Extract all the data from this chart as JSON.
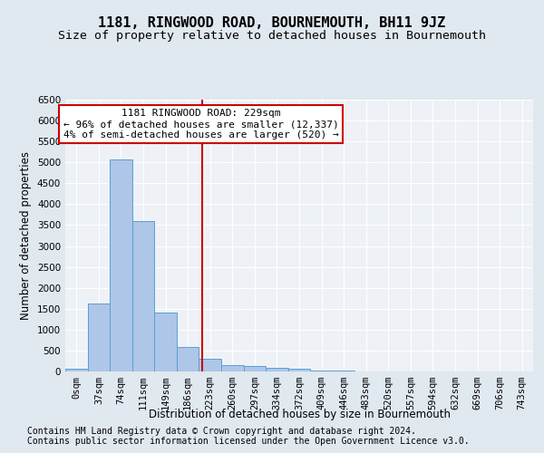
{
  "title": "1181, RINGWOOD ROAD, BOURNEMOUTH, BH11 9JZ",
  "subtitle": "Size of property relative to detached houses in Bournemouth",
  "xlabel": "Distribution of detached houses by size in Bournemouth",
  "ylabel": "Number of detached properties",
  "footer1": "Contains HM Land Registry data © Crown copyright and database right 2024.",
  "footer2": "Contains public sector information licensed under the Open Government Licence v3.0.",
  "bin_labels": [
    "0sqm",
    "37sqm",
    "74sqm",
    "111sqm",
    "149sqm",
    "186sqm",
    "223sqm",
    "260sqm",
    "297sqm",
    "334sqm",
    "372sqm",
    "409sqm",
    "446sqm",
    "483sqm",
    "520sqm",
    "557sqm",
    "594sqm",
    "632sqm",
    "669sqm",
    "706sqm",
    "743sqm"
  ],
  "bar_values": [
    60,
    1630,
    5080,
    3600,
    1410,
    590,
    300,
    150,
    130,
    95,
    55,
    30,
    20,
    10,
    5,
    3,
    2,
    1,
    1,
    0,
    0
  ],
  "bar_color": "#aec6e8",
  "bar_edge_color": "#5a9fd4",
  "vline_color": "#cc0000",
  "annotation_line1": "1181 RINGWOOD ROAD: 229sqm",
  "annotation_line2": "← 96% of detached houses are smaller (12,337)",
  "annotation_line3": "4% of semi-detached houses are larger (520) →",
  "annotation_box_color": "#ffffff",
  "annotation_box_edge": "#cc0000",
  "ylim": [
    0,
    6500
  ],
  "yticks": [
    0,
    500,
    1000,
    1500,
    2000,
    2500,
    3000,
    3500,
    4000,
    4500,
    5000,
    5500,
    6000,
    6500
  ],
  "bg_color": "#e0e8f0",
  "plot_bg_color": "#eef2f7",
  "grid_color": "#ffffff",
  "title_fontsize": 11,
  "subtitle_fontsize": 9.5,
  "axis_label_fontsize": 8.5,
  "tick_fontsize": 7.5,
  "footer_fontsize": 7,
  "annot_fontsize": 8
}
